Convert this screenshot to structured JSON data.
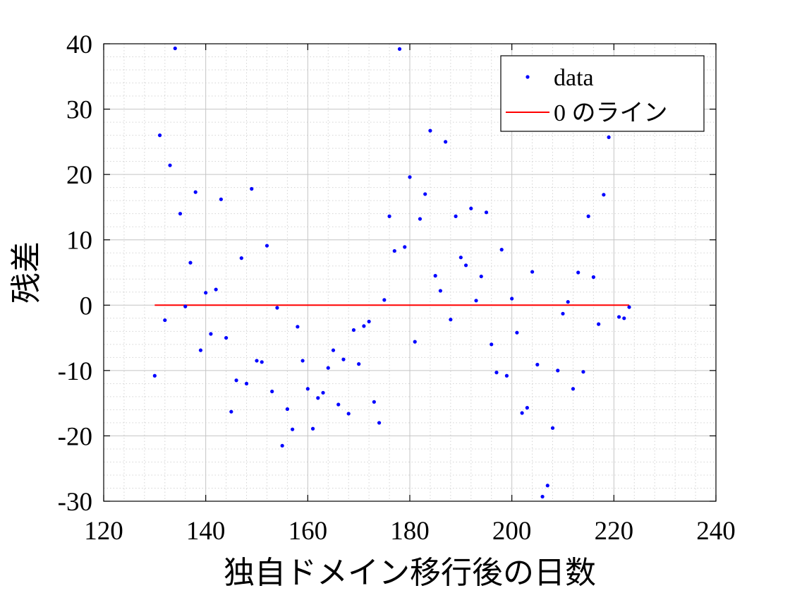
{
  "chart_data": {
    "type": "scatter",
    "xlabel": "独自ドメイン移行後の日数",
    "ylabel": "残差",
    "xlim": [
      120,
      240
    ],
    "ylim": [
      -30,
      40
    ],
    "xticks": [
      120,
      140,
      160,
      180,
      200,
      220,
      240
    ],
    "yticks": [
      -30,
      -20,
      -10,
      0,
      10,
      20,
      30,
      40
    ],
    "grid": true,
    "minor_grid": true,
    "legend_position": "top-right",
    "series": [
      {
        "name": "data",
        "style": "points",
        "color": "#0000ff",
        "points": [
          [
            130,
            -10.8
          ],
          [
            131,
            26
          ],
          [
            132,
            -2.3
          ],
          [
            133,
            21.4
          ],
          [
            134,
            39.3
          ],
          [
            135,
            14
          ],
          [
            136,
            -0.2
          ],
          [
            137,
            6.5
          ],
          [
            138,
            17.3
          ],
          [
            139,
            -6.9
          ],
          [
            140,
            1.9
          ],
          [
            141,
            -4.4
          ],
          [
            142,
            2.4
          ],
          [
            143,
            16.2
          ],
          [
            144,
            -5
          ],
          [
            145,
            -16.3
          ],
          [
            146,
            -11.5
          ],
          [
            147,
            7.2
          ],
          [
            148,
            -12
          ],
          [
            149,
            17.8
          ],
          [
            150,
            -8.5
          ],
          [
            151,
            -8.7
          ],
          [
            152,
            9.1
          ],
          [
            153,
            -13.2
          ],
          [
            154,
            -0.4
          ],
          [
            155,
            -21.5
          ],
          [
            156,
            -15.9
          ],
          [
            157,
            -19
          ],
          [
            158,
            -3.3
          ],
          [
            159,
            -8.5
          ],
          [
            160,
            -12.8
          ],
          [
            161,
            -18.9
          ],
          [
            162,
            -14.2
          ],
          [
            163,
            -13.4
          ],
          [
            164,
            -9.6
          ],
          [
            165,
            -6.9
          ],
          [
            166,
            -15.2
          ],
          [
            167,
            -8.3
          ],
          [
            168,
            -16.6
          ],
          [
            169,
            -3.8
          ],
          [
            170,
            -9
          ],
          [
            171,
            -3.2
          ],
          [
            172,
            -2.5
          ],
          [
            173,
            -14.8
          ],
          [
            174,
            -18
          ],
          [
            175,
            0.8
          ],
          [
            176,
            13.6
          ],
          [
            177,
            8.3
          ],
          [
            178,
            39.2
          ],
          [
            179,
            8.9
          ],
          [
            180,
            19.6
          ],
          [
            181,
            -5.6
          ],
          [
            182,
            13.2
          ],
          [
            183,
            17
          ],
          [
            184,
            26.7
          ],
          [
            185,
            4.5
          ],
          [
            186,
            2.2
          ],
          [
            187,
            25
          ],
          [
            188,
            -2.2
          ],
          [
            189,
            13.6
          ],
          [
            190,
            7.3
          ],
          [
            191,
            6.1
          ],
          [
            192,
            14.8
          ],
          [
            193,
            0.7
          ],
          [
            194,
            4.4
          ],
          [
            195,
            14.2
          ],
          [
            196,
            -6
          ],
          [
            197,
            -10.3
          ],
          [
            198,
            8.5
          ],
          [
            199,
            -10.8
          ],
          [
            200,
            1
          ],
          [
            201,
            -4.2
          ],
          [
            202,
            -16.5
          ],
          [
            203,
            -15.7
          ],
          [
            204,
            5.1
          ],
          [
            205,
            -9.1
          ],
          [
            206,
            -29.3
          ],
          [
            207,
            -27.6
          ],
          [
            208,
            -18.8
          ],
          [
            209,
            -10
          ],
          [
            210,
            -1.3
          ],
          [
            211,
            0.5
          ],
          [
            212,
            -12.8
          ],
          [
            213,
            5
          ],
          [
            214,
            -10.2
          ],
          [
            215,
            13.6
          ],
          [
            216,
            4.3
          ],
          [
            217,
            -2.9
          ],
          [
            218,
            16.9
          ],
          [
            219,
            25.7
          ],
          [
            221,
            -1.8
          ],
          [
            222,
            -2
          ],
          [
            223,
            -0.3
          ]
        ]
      },
      {
        "name": "0 のライン",
        "style": "line",
        "color": "#ff0000",
        "x": [
          130,
          223
        ],
        "y": [
          0,
          0
        ]
      }
    ]
  }
}
